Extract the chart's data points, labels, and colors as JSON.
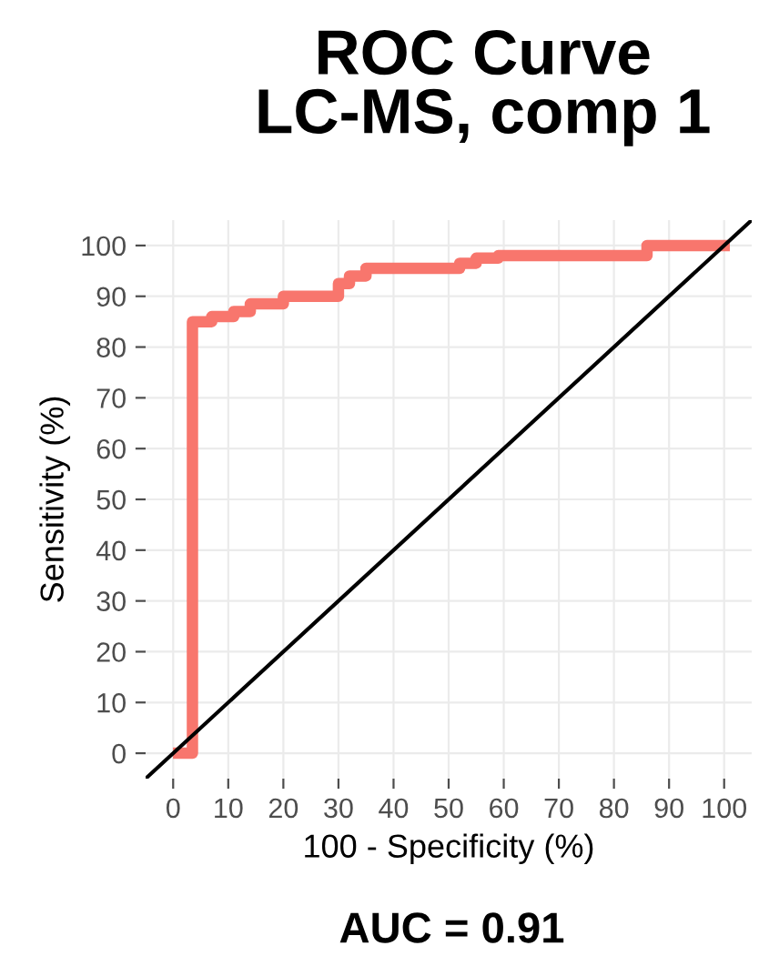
{
  "chart_data": {
    "type": "step",
    "title": "ROC Curve\nLC-MS, comp 1",
    "xlabel": "100 - Specificity (%)",
    "ylabel": "Sensitivity (%)",
    "series": [
      {
        "color": "#f8766d",
        "x": [
          1,
          3.5,
          7,
          11,
          14,
          20,
          30,
          32,
          35,
          52,
          55,
          59,
          86,
          100
        ],
        "values": [
          0,
          85,
          86,
          87,
          88.5,
          90,
          92.5,
          94,
          95.5,
          96.5,
          97.5,
          98,
          100,
          100
        ]
      },
      {
        "type": "line",
        "color": "#000000",
        "x": [
          -5,
          105
        ],
        "values": [
          -5,
          105
        ]
      }
    ],
    "xlim": [
      -5,
      105
    ],
    "ylim": [
      -5,
      105
    ],
    "xticks": [
      0,
      10,
      20,
      30,
      40,
      50,
      60,
      70,
      80,
      90,
      100
    ],
    "yticks": [
      0,
      10,
      20,
      30,
      40,
      50,
      60,
      70,
      80,
      90,
      100
    ],
    "grid": true,
    "annotations": [
      "AUC = 0.91"
    ]
  }
}
